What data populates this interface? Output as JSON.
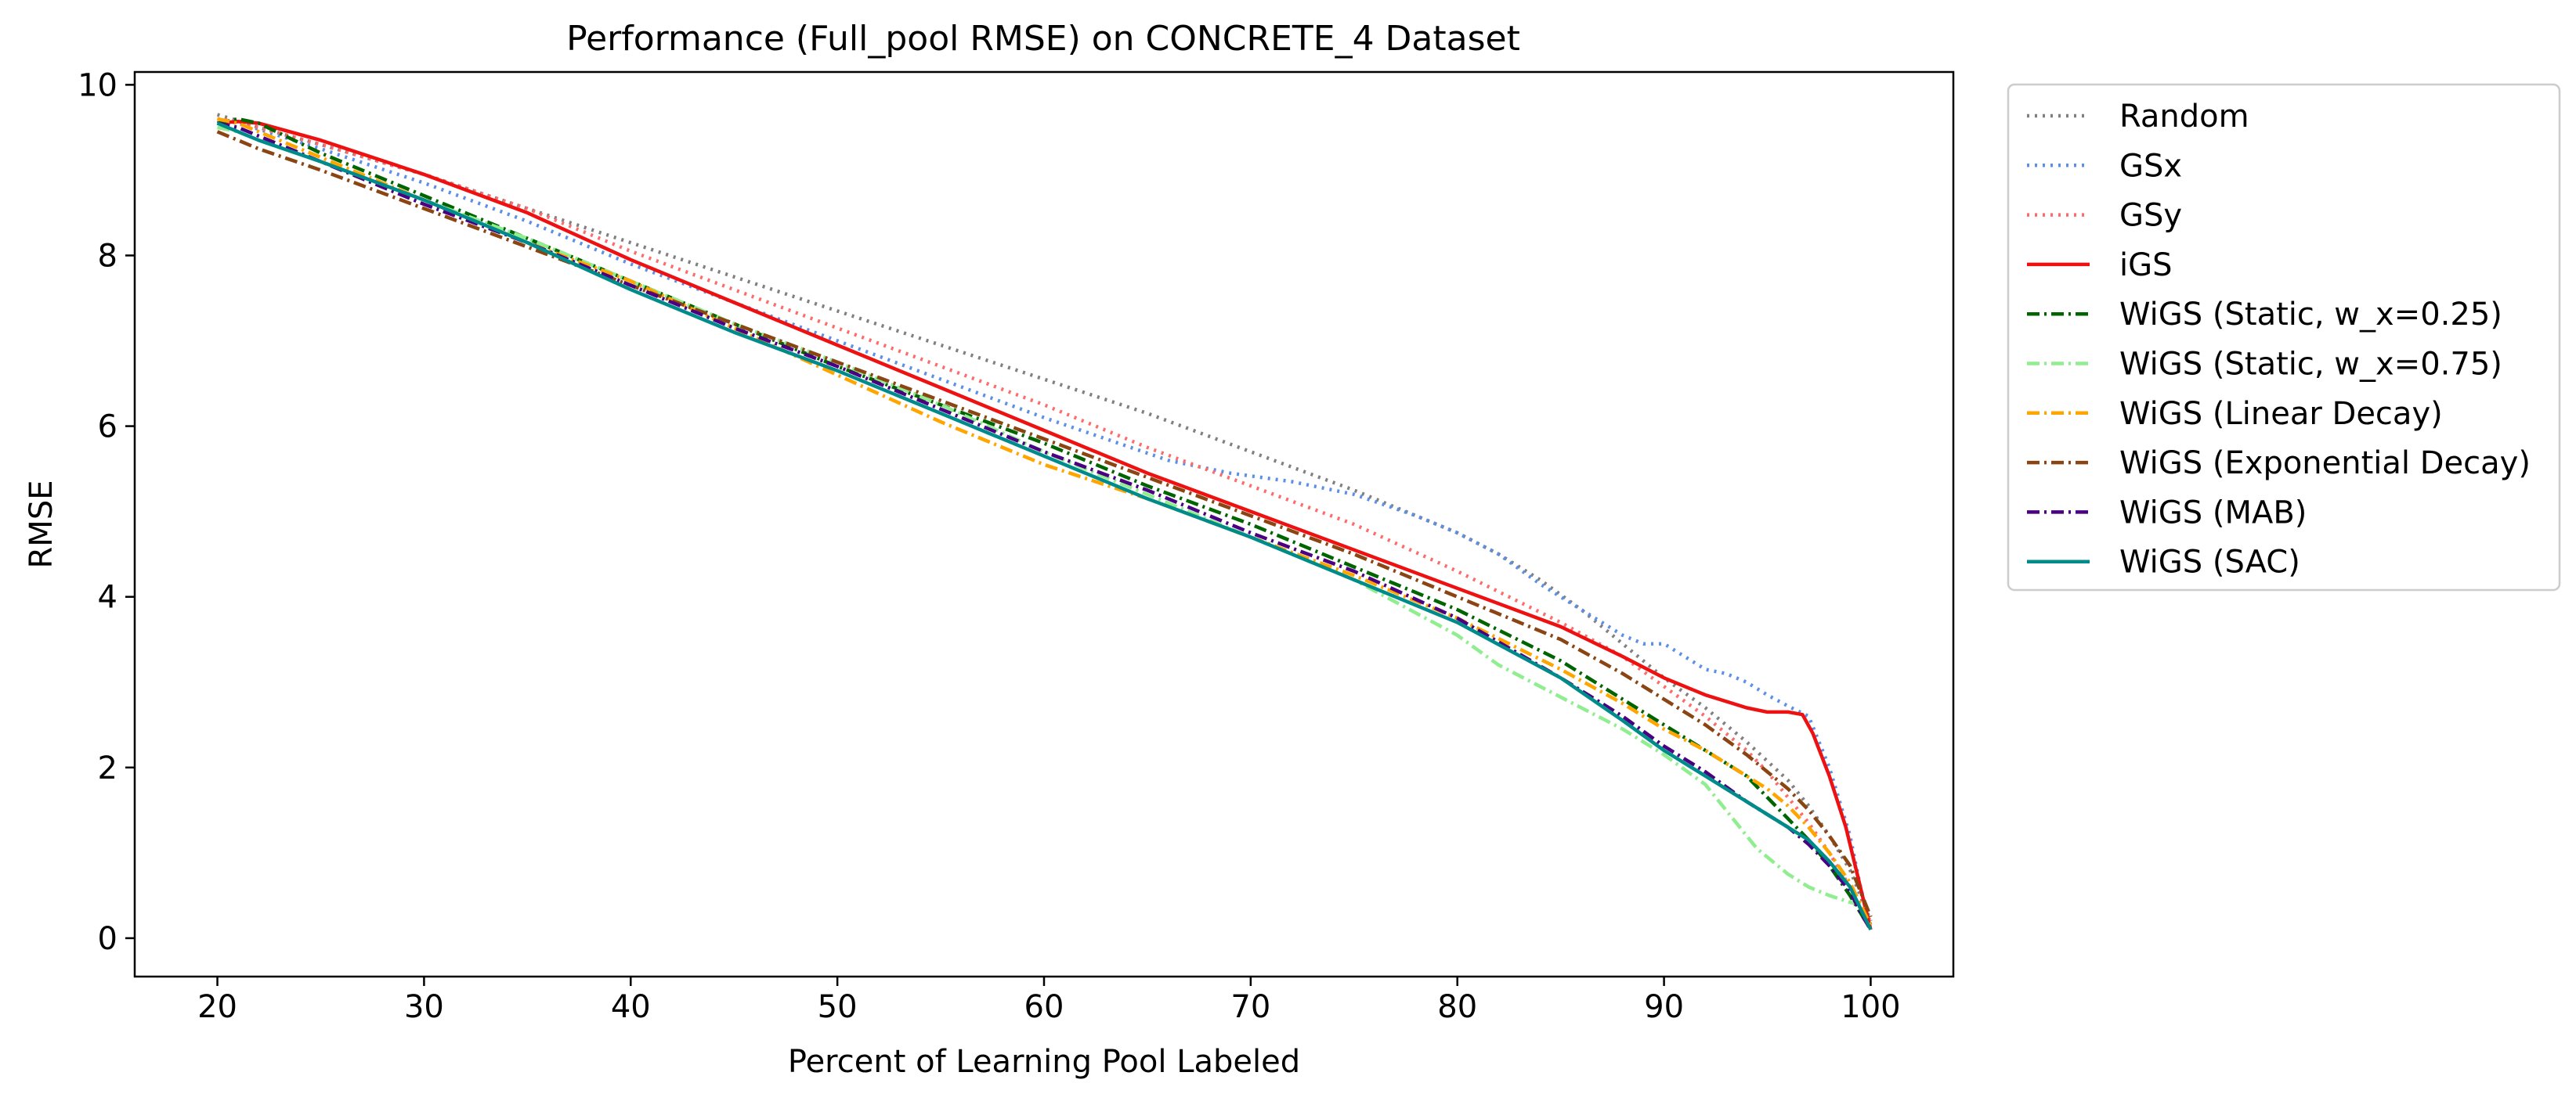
{
  "chart_data": {
    "type": "line",
    "title": "Performance (Full_pool RMSE) on CONCRETE_4 Dataset",
    "xlabel": "Percent of Learning Pool Labeled",
    "ylabel": "RMSE",
    "xlim": [
      16,
      104
    ],
    "ylim": [
      -0.45,
      10.15
    ],
    "xticks": [
      20,
      30,
      40,
      50,
      60,
      70,
      80,
      90,
      100
    ],
    "yticks": [
      0,
      2,
      4,
      6,
      8,
      10
    ],
    "grid": false,
    "legend_position": "outside-right",
    "series": [
      {
        "name": "Random",
        "color": "#808080",
        "style": "dotted",
        "x": [
          20,
          21,
          22,
          25,
          30,
          35,
          40,
          45,
          50,
          55,
          60,
          65,
          70,
          75,
          80,
          82,
          84,
          86,
          88,
          90,
          92,
          94,
          96,
          97,
          98,
          99,
          99.5,
          100
        ],
        "y": [
          9.65,
          9.58,
          9.5,
          9.3,
          8.95,
          8.55,
          8.15,
          7.75,
          7.35,
          6.95,
          6.55,
          6.15,
          5.7,
          5.25,
          4.75,
          4.5,
          4.2,
          3.85,
          3.45,
          3.05,
          2.7,
          2.3,
          1.85,
          1.55,
          1.2,
          0.8,
          0.5,
          0.2
        ]
      },
      {
        "name": "GSx",
        "color": "#5b8fe8",
        "style": "dotted",
        "x": [
          20,
          21,
          22,
          25,
          30,
          35,
          40,
          45,
          50,
          55,
          60,
          63,
          66,
          69,
          72,
          75,
          78,
          80,
          82,
          84,
          86,
          88,
          89,
          90,
          91,
          92,
          93,
          94,
          95,
          96,
          97,
          98,
          99,
          99.5,
          100
        ],
        "y": [
          9.6,
          9.55,
          9.48,
          9.25,
          8.85,
          8.4,
          7.9,
          7.45,
          7.0,
          6.55,
          6.1,
          5.85,
          5.6,
          5.45,
          5.35,
          5.2,
          4.95,
          4.75,
          4.5,
          4.15,
          3.85,
          3.55,
          3.45,
          3.45,
          3.3,
          3.15,
          3.1,
          3.0,
          2.85,
          2.72,
          2.6,
          2.0,
          1.2,
          0.6,
          0.15
        ]
      },
      {
        "name": "GSy",
        "color": "#ff6b6b",
        "style": "dotted",
        "x": [
          20,
          21,
          22,
          25,
          30,
          35,
          40,
          45,
          50,
          55,
          60,
          65,
          70,
          75,
          80,
          85,
          88,
          90,
          92,
          94,
          95,
          96,
          97,
          98,
          99,
          99.5,
          100
        ],
        "y": [
          9.6,
          9.57,
          9.5,
          9.3,
          8.95,
          8.55,
          8.05,
          7.6,
          7.15,
          6.7,
          6.25,
          5.75,
          5.3,
          4.85,
          4.3,
          3.7,
          3.3,
          2.95,
          2.6,
          2.2,
          1.95,
          1.65,
          1.35,
          1.0,
          0.6,
          0.35,
          0.2
        ]
      },
      {
        "name": "iGS",
        "color": "#ee1111",
        "style": "solid",
        "x": [
          20,
          21,
          22,
          25,
          30,
          35,
          40,
          45,
          50,
          55,
          60,
          65,
          70,
          75,
          80,
          85,
          88,
          90,
          92,
          94,
          95,
          96,
          96.7,
          97.2,
          98,
          98.8,
          99.3,
          99.7,
          100
        ],
        "y": [
          9.55,
          9.57,
          9.55,
          9.35,
          8.95,
          8.5,
          7.95,
          7.45,
          6.95,
          6.45,
          5.95,
          5.45,
          5.0,
          4.55,
          4.1,
          3.65,
          3.3,
          3.05,
          2.85,
          2.7,
          2.65,
          2.65,
          2.62,
          2.4,
          1.9,
          1.3,
          0.8,
          0.4,
          0.1
        ]
      },
      {
        "name": "WiGS (Static, w_x=0.25)",
        "color": "#006400",
        "style": "dashdot",
        "x": [
          20,
          21,
          22,
          25,
          30,
          35,
          40,
          45,
          50,
          55,
          60,
          65,
          70,
          75,
          80,
          85,
          88,
          90,
          92,
          94,
          95,
          96,
          97,
          98,
          99,
          99.5,
          100
        ],
        "y": [
          9.55,
          9.6,
          9.55,
          9.2,
          8.7,
          8.2,
          7.7,
          7.2,
          6.7,
          6.25,
          5.8,
          5.3,
          4.85,
          4.35,
          3.85,
          3.25,
          2.8,
          2.5,
          2.2,
          1.9,
          1.65,
          1.4,
          1.15,
          0.85,
          0.5,
          0.3,
          0.1
        ]
      },
      {
        "name": "WiGS (Static, w_x=0.75)",
        "color": "#90ee90",
        "style": "dashdot",
        "x": [
          20,
          21,
          22,
          25,
          30,
          35,
          40,
          45,
          50,
          55,
          60,
          65,
          70,
          75,
          80,
          82,
          84,
          86,
          88,
          90,
          92,
          93,
          94,
          94.5,
          95,
          96,
          97,
          98,
          99,
          99.5,
          100
        ],
        "y": [
          9.5,
          9.45,
          9.35,
          9.1,
          8.65,
          8.2,
          7.7,
          7.2,
          6.75,
          6.25,
          5.7,
          5.2,
          4.7,
          4.2,
          3.55,
          3.2,
          2.95,
          2.7,
          2.45,
          2.15,
          1.8,
          1.5,
          1.2,
          1.05,
          0.95,
          0.75,
          0.6,
          0.5,
          0.42,
          0.4,
          0.35
        ]
      },
      {
        "name": "WiGS (Linear Decay)",
        "color": "#ffa500",
        "style": "dashdot",
        "x": [
          20,
          21,
          22,
          25,
          30,
          35,
          40,
          45,
          50,
          55,
          60,
          65,
          70,
          75,
          80,
          85,
          88,
          90,
          92,
          94,
          95,
          96,
          97,
          98,
          99,
          99.5,
          100
        ],
        "y": [
          9.6,
          9.55,
          9.45,
          9.15,
          8.65,
          8.15,
          7.7,
          7.15,
          6.6,
          6.05,
          5.55,
          5.15,
          4.7,
          4.25,
          3.75,
          3.15,
          2.75,
          2.45,
          2.2,
          1.9,
          1.75,
          1.55,
          1.3,
          1.0,
          0.65,
          0.4,
          0.15
        ]
      },
      {
        "name": "WiGS (Exponential Decay)",
        "color": "#8b4513",
        "style": "dashdot",
        "x": [
          20,
          21,
          22,
          25,
          30,
          35,
          40,
          45,
          50,
          55,
          60,
          65,
          70,
          75,
          80,
          85,
          88,
          90,
          92,
          94,
          95,
          96,
          97,
          98,
          99,
          99.5,
          100
        ],
        "y": [
          9.45,
          9.35,
          9.25,
          9.0,
          8.55,
          8.1,
          7.65,
          7.2,
          6.75,
          6.3,
          5.85,
          5.4,
          4.95,
          4.5,
          4.0,
          3.5,
          3.1,
          2.8,
          2.5,
          2.15,
          1.95,
          1.75,
          1.5,
          1.2,
          0.85,
          0.55,
          0.25
        ]
      },
      {
        "name": "WiGS (MAB)",
        "color": "#4b0082",
        "style": "dashdot",
        "x": [
          20,
          21,
          22,
          25,
          30,
          35,
          40,
          45,
          50,
          55,
          60,
          65,
          70,
          75,
          80,
          85,
          88,
          90,
          92,
          94,
          95,
          96,
          97,
          98,
          99,
          99.5,
          100
        ],
        "y": [
          9.55,
          9.5,
          9.4,
          9.1,
          8.6,
          8.15,
          7.65,
          7.15,
          6.7,
          6.2,
          5.7,
          5.25,
          4.75,
          4.3,
          3.75,
          3.05,
          2.6,
          2.25,
          1.95,
          1.6,
          1.45,
          1.3,
          1.1,
          0.85,
          0.55,
          0.3,
          0.1
        ]
      },
      {
        "name": "WiGS (SAC)",
        "color": "#008b8b",
        "style": "solid",
        "x": [
          20,
          21,
          22,
          25,
          30,
          35,
          40,
          45,
          50,
          55,
          60,
          65,
          70,
          75,
          80,
          85,
          88,
          90,
          92,
          94,
          95,
          96,
          97,
          98,
          99,
          99.5,
          100
        ],
        "y": [
          9.55,
          9.45,
          9.35,
          9.1,
          8.65,
          8.15,
          7.6,
          7.1,
          6.65,
          6.15,
          5.65,
          5.15,
          4.7,
          4.2,
          3.7,
          3.05,
          2.55,
          2.2,
          1.9,
          1.6,
          1.45,
          1.3,
          1.15,
          0.9,
          0.6,
          0.35,
          0.1
        ]
      }
    ]
  }
}
